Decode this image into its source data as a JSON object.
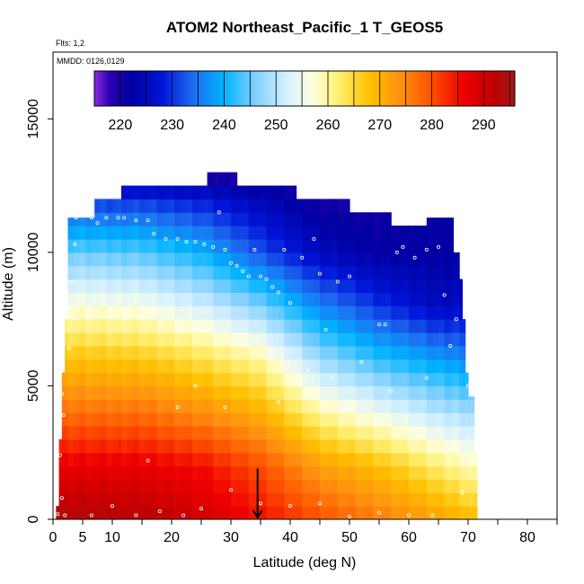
{
  "chart_data": {
    "type": "heatmap",
    "title": "ATOM2 Northeast_Pacific_1 T_GEOS5",
    "flights_note": "Flts: 1,2",
    "dates_note": "MMDD: 0126,0129",
    "xlabel": "Latitude (deg N)",
    "ylabel": "Altitude (m)",
    "xlim": [
      0,
      85
    ],
    "ylim": [
      0,
      17500
    ],
    "x_ticks": [
      0,
      5,
      10,
      20,
      30,
      40,
      50,
      60,
      70,
      80
    ],
    "y_ticks": [
      0,
      5000,
      10000,
      15000
    ],
    "grid": false,
    "legend": "colorbar, top",
    "colorbar": {
      "range": [
        215,
        296
      ],
      "ticks": [
        220,
        230,
        240,
        250,
        260,
        270,
        280,
        290
      ],
      "stops": [
        {
          "value": 215,
          "color": "#8a2be2"
        },
        {
          "value": 218,
          "color": "#2a00b0"
        },
        {
          "value": 222,
          "color": "#0000a0"
        },
        {
          "value": 228,
          "color": "#0014d8"
        },
        {
          "value": 234,
          "color": "#1e6cf0"
        },
        {
          "value": 240,
          "color": "#00b4ff"
        },
        {
          "value": 246,
          "color": "#80d0ff"
        },
        {
          "value": 252,
          "color": "#d4f0ff"
        },
        {
          "value": 257,
          "color": "#ffffe0"
        },
        {
          "value": 262,
          "color": "#fff070"
        },
        {
          "value": 268,
          "color": "#ffc000"
        },
        {
          "value": 274,
          "color": "#ff9010"
        },
        {
          "value": 280,
          "color": "#ff5000"
        },
        {
          "value": 286,
          "color": "#f00000"
        },
        {
          "value": 292,
          "color": "#c00000"
        },
        {
          "value": 296,
          "color": "#a01818"
        }
      ]
    },
    "profile_columns": [
      {
        "lat_start": 0.5,
        "lat_end": 1.0,
        "alt_top": 500
      },
      {
        "lat_start": 1.0,
        "lat_end": 1.5,
        "alt_top": 3000
      },
      {
        "lat_start": 1.5,
        "lat_end": 2.0,
        "alt_top": 5500
      },
      {
        "lat_start": 2.0,
        "lat_end": 2.5,
        "alt_top": 7500
      },
      {
        "lat_start": 2.5,
        "lat_end": 3.5,
        "alt_top": 11300
      },
      {
        "lat_start": 3.5,
        "lat_end": 7.0,
        "alt_top": 11300
      },
      {
        "lat_start": 7.0,
        "lat_end": 11.5,
        "alt_top": 12000
      },
      {
        "lat_start": 11.5,
        "lat_end": 26.0,
        "alt_top": 12500
      },
      {
        "lat_start": 26.0,
        "lat_end": 31.0,
        "alt_top": 13000
      },
      {
        "lat_start": 31.0,
        "lat_end": 41.0,
        "alt_top": 12500
      },
      {
        "lat_start": 41.0,
        "lat_end": 50.0,
        "alt_top": 12000
      },
      {
        "lat_start": 50.0,
        "lat_end": 57.0,
        "alt_top": 11500
      },
      {
        "lat_start": 57.0,
        "lat_end": 63.0,
        "alt_top": 11000
      },
      {
        "lat_start": 63.0,
        "lat_end": 67.5,
        "alt_top": 11300
      },
      {
        "lat_start": 67.5,
        "lat_end": 68.5,
        "alt_top": 10000
      },
      {
        "lat_start": 68.5,
        "lat_end": 69.0,
        "alt_top": 9000
      },
      {
        "lat_start": 69.0,
        "lat_end": 69.5,
        "alt_top": 7500
      },
      {
        "lat_start": 69.5,
        "lat_end": 70.0,
        "alt_top": 5500
      },
      {
        "lat_start": 70.0,
        "lat_end": 71.0,
        "alt_top": 4600
      },
      {
        "lat_start": 71.0,
        "lat_end": 71.5,
        "alt_top": 2500
      }
    ],
    "temperature_profiles": [
      {
        "lat": 2,
        "alt": [
          0,
          2000,
          4000,
          6000,
          8000,
          10000,
          12000,
          13000
        ],
        "T": [
          294,
          287,
          277,
          268,
          257,
          245,
          230,
          218
        ]
      },
      {
        "lat": 15,
        "alt": [
          0,
          2000,
          4000,
          6000,
          8000,
          10000,
          12000,
          13000
        ],
        "T": [
          293,
          287,
          277,
          267,
          256,
          244,
          230,
          218
        ]
      },
      {
        "lat": 25,
        "alt": [
          0,
          2000,
          4000,
          6000,
          8000,
          10000,
          12000,
          13000
        ],
        "T": [
          290,
          285,
          274,
          264,
          252,
          240,
          228,
          218
        ]
      },
      {
        "lat": 35,
        "alt": [
          0,
          2000,
          4000,
          6000,
          8000,
          10000,
          12000,
          13000
        ],
        "T": [
          285,
          280,
          270,
          260,
          246,
          232,
          224,
          218
        ]
      },
      {
        "lat": 45,
        "alt": [
          0,
          2000,
          4000,
          6000,
          8000,
          10000,
          12000,
          13000
        ],
        "T": [
          280,
          272,
          260,
          248,
          236,
          225,
          220,
          218
        ]
      },
      {
        "lat": 55,
        "alt": [
          0,
          2000,
          4000,
          6000,
          8000,
          10000,
          12000,
          13000
        ],
        "T": [
          276,
          268,
          255,
          242,
          230,
          222,
          220,
          218
        ]
      },
      {
        "lat": 65,
        "alt": [
          0,
          2000,
          4000,
          6000,
          8000,
          10000,
          12000,
          13000
        ],
        "T": [
          272,
          262,
          250,
          238,
          225,
          222,
          222,
          220
        ]
      },
      {
        "lat": 72,
        "alt": [
          0,
          2000,
          4000,
          6000,
          8000,
          10000,
          12000,
          13000
        ],
        "T": [
          268,
          258,
          248,
          236,
          226,
          222,
          222,
          220
        ]
      }
    ],
    "observations": [
      {
        "lat": 0.8,
        "alt": 200
      },
      {
        "lat": 1.5,
        "alt": 800
      },
      {
        "lat": 1.2,
        "alt": 2400
      },
      {
        "lat": 1.8,
        "alt": 3900
      },
      {
        "lat": 1.5,
        "alt": 4700
      },
      {
        "lat": 2.7,
        "alt": 6400
      },
      {
        "lat": 3.2,
        "alt": 8900
      },
      {
        "lat": 3.7,
        "alt": 10300
      },
      {
        "lat": 3.9,
        "alt": 11300
      },
      {
        "lat": 6.5,
        "alt": 11300
      },
      {
        "lat": 7.5,
        "alt": 11100
      },
      {
        "lat": 9.0,
        "alt": 11300
      },
      {
        "lat": 11,
        "alt": 11300
      },
      {
        "lat": 12,
        "alt": 11300
      },
      {
        "lat": 14,
        "alt": 11200
      },
      {
        "lat": 16,
        "alt": 11200
      },
      {
        "lat": 17,
        "alt": 10700
      },
      {
        "lat": 19,
        "alt": 10500
      },
      {
        "lat": 21,
        "alt": 10500
      },
      {
        "lat": 22.5,
        "alt": 10400
      },
      {
        "lat": 24,
        "alt": 10400
      },
      {
        "lat": 25.5,
        "alt": 10300
      },
      {
        "lat": 27,
        "alt": 10200
      },
      {
        "lat": 28,
        "alt": 11500
      },
      {
        "lat": 29,
        "alt": 10100
      },
      {
        "lat": 30,
        "alt": 9600
      },
      {
        "lat": 31,
        "alt": 9500
      },
      {
        "lat": 32,
        "alt": 9300
      },
      {
        "lat": 33,
        "alt": 9100
      },
      {
        "lat": 34,
        "alt": 10100
      },
      {
        "lat": 35,
        "alt": 9100
      },
      {
        "lat": 36,
        "alt": 9000
      },
      {
        "lat": 37,
        "alt": 8700
      },
      {
        "lat": 38,
        "alt": 8500
      },
      {
        "lat": 39,
        "alt": 10100
      },
      {
        "lat": 40,
        "alt": 8100
      },
      {
        "lat": 42,
        "alt": 9800
      },
      {
        "lat": 44,
        "alt": 10500
      },
      {
        "lat": 45,
        "alt": 9200
      },
      {
        "lat": 48,
        "alt": 8900
      },
      {
        "lat": 50,
        "alt": 9100
      },
      {
        "lat": 55,
        "alt": 7300
      },
      {
        "lat": 56,
        "alt": 7300
      },
      {
        "lat": 58,
        "alt": 10000
      },
      {
        "lat": 59,
        "alt": 10200
      },
      {
        "lat": 61,
        "alt": 9800
      },
      {
        "lat": 63,
        "alt": 10100
      },
      {
        "lat": 65,
        "alt": 10200
      },
      {
        "lat": 66,
        "alt": 8400
      },
      {
        "lat": 68,
        "alt": 7500
      },
      {
        "lat": 70,
        "alt": 5000
      },
      {
        "lat": 70,
        "alt": 3000
      },
      {
        "lat": 69,
        "alt": 1000
      },
      {
        "lat": 64,
        "alt": 150
      },
      {
        "lat": 60,
        "alt": 150
      },
      {
        "lat": 55,
        "alt": 250
      },
      {
        "lat": 50,
        "alt": 100
      },
      {
        "lat": 45,
        "alt": 600
      },
      {
        "lat": 40,
        "alt": 500
      },
      {
        "lat": 35,
        "alt": 600
      },
      {
        "lat": 30,
        "alt": 1100
      },
      {
        "lat": 25,
        "alt": 400
      },
      {
        "lat": 22,
        "alt": 150
      },
      {
        "lat": 18,
        "alt": 300
      },
      {
        "lat": 14,
        "alt": 150
      },
      {
        "lat": 10,
        "alt": 500
      },
      {
        "lat": 6.5,
        "alt": 150
      },
      {
        "lat": 2,
        "alt": 150
      },
      {
        "lat": 16,
        "alt": 2200
      },
      {
        "lat": 21,
        "alt": 4200
      },
      {
        "lat": 24,
        "alt": 5000
      },
      {
        "lat": 29,
        "alt": 4200
      },
      {
        "lat": 32,
        "alt": 6500
      },
      {
        "lat": 38,
        "alt": 4400
      },
      {
        "lat": 43,
        "alt": 5600
      },
      {
        "lat": 47,
        "alt": 5300
      },
      {
        "lat": 52,
        "alt": 5900
      },
      {
        "lat": 57,
        "alt": 4800
      },
      {
        "lat": 63,
        "alt": 5300
      },
      {
        "lat": 67,
        "alt": 6500
      },
      {
        "lat": 46,
        "alt": 7100
      },
      {
        "lat": 60,
        "alt": 2800
      }
    ],
    "marker": {
      "lat": 34.5,
      "alt": 700,
      "shape": "arrow-down"
    }
  }
}
